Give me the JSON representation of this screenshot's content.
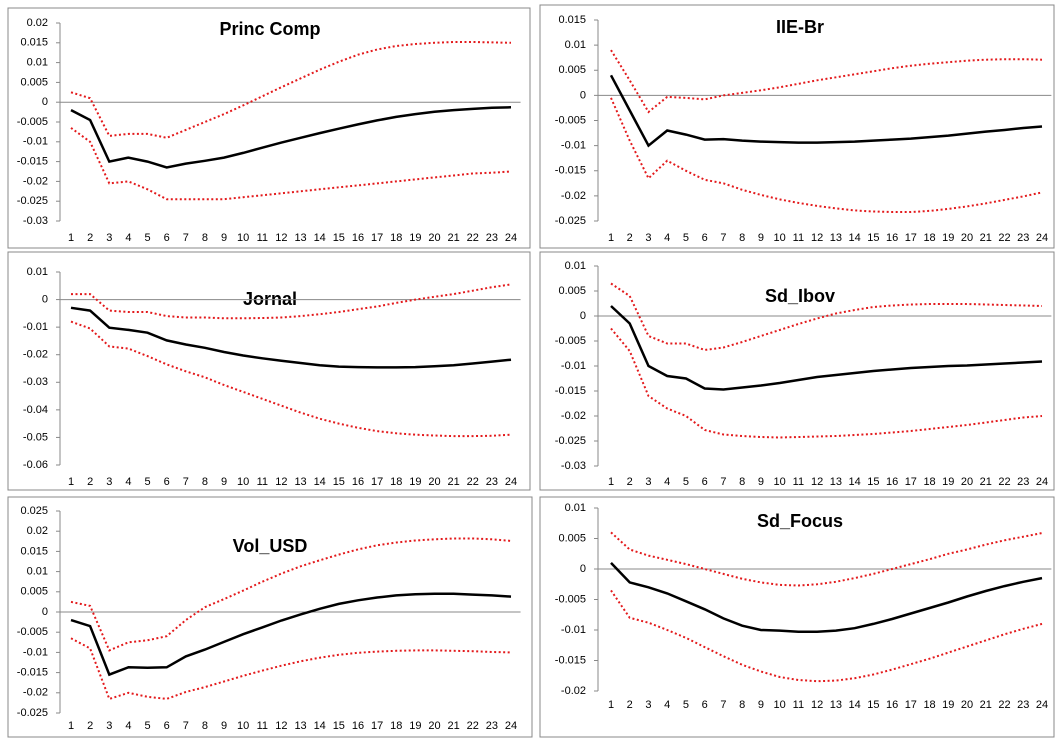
{
  "chart_data": [
    {
      "type": "line",
      "title": "Princ Comp",
      "categories": [
        "1",
        "2",
        "3",
        "4",
        "5",
        "6",
        "7",
        "8",
        "9",
        "10",
        "11",
        "12",
        "13",
        "14",
        "15",
        "16",
        "17",
        "18",
        "19",
        "20",
        "21",
        "22",
        "23",
        "24"
      ],
      "ylim": [
        -0.03,
        0.02
      ],
      "yticks": [
        0.02,
        0.015,
        0.01,
        0.005,
        0,
        -0.005,
        -0.01,
        -0.015,
        -0.02,
        -0.025,
        -0.03
      ],
      "series": [
        {
          "color": "#000000",
          "style": "solid",
          "values": [
            -0.002,
            -0.0045,
            -0.015,
            -0.014,
            -0.015,
            -0.0165,
            -0.0155,
            -0.0148,
            -0.014,
            -0.0128,
            -0.0115,
            -0.0102,
            -0.009,
            -0.0078,
            -0.0067,
            -0.0056,
            -0.0046,
            -0.0037,
            -0.003,
            -0.0024,
            -0.002,
            -0.0017,
            -0.0014,
            -0.0013
          ]
        },
        {
          "color": "#e31a1c",
          "style": "dotted",
          "values": [
            0.0025,
            0.001,
            -0.0085,
            -0.008,
            -0.008,
            -0.009,
            -0.007,
            -0.005,
            -0.003,
            -0.0008,
            0.0015,
            0.0038,
            0.006,
            0.0082,
            0.0102,
            0.012,
            0.0133,
            0.0142,
            0.0147,
            0.015,
            0.0152,
            0.0152,
            0.0151,
            0.015
          ]
        },
        {
          "color": "#e31a1c",
          "style": "dotted",
          "values": [
            -0.0065,
            -0.01,
            -0.0205,
            -0.02,
            -0.022,
            -0.0245,
            -0.0245,
            -0.0245,
            -0.0245,
            -0.024,
            -0.0235,
            -0.023,
            -0.0225,
            -0.022,
            -0.0215,
            -0.021,
            -0.0205,
            -0.02,
            -0.0195,
            -0.019,
            -0.0185,
            -0.018,
            -0.0178,
            -0.0175
          ]
        }
      ]
    },
    {
      "type": "line",
      "title": "IIE-Br",
      "categories": [
        "1",
        "2",
        "3",
        "4",
        "5",
        "6",
        "7",
        "8",
        "9",
        "10",
        "11",
        "12",
        "13",
        "14",
        "15",
        "16",
        "17",
        "18",
        "19",
        "20",
        "21",
        "22",
        "23",
        "24"
      ],
      "ylim": [
        -0.025,
        0.015
      ],
      "yticks": [
        0.015,
        0.01,
        0.005,
        0,
        -0.005,
        -0.01,
        -0.015,
        -0.02,
        -0.025
      ],
      "series": [
        {
          "color": "#000000",
          "style": "solid",
          "values": [
            0.004,
            -0.003,
            -0.01,
            -0.007,
            -0.0078,
            -0.0088,
            -0.0087,
            -0.009,
            -0.0092,
            -0.0093,
            -0.0094,
            -0.0094,
            -0.0093,
            -0.0092,
            -0.009,
            -0.0088,
            -0.0086,
            -0.0083,
            -0.008,
            -0.0076,
            -0.0072,
            -0.0069,
            -0.0065,
            -0.0062
          ]
        },
        {
          "color": "#e31a1c",
          "style": "dotted",
          "values": [
            0.009,
            0.003,
            -0.0033,
            -0.0003,
            -0.0005,
            -0.0008,
            0,
            0.0005,
            0.001,
            0.0016,
            0.0023,
            0.003,
            0.0036,
            0.0042,
            0.0048,
            0.0054,
            0.0059,
            0.0063,
            0.0066,
            0.0069,
            0.0071,
            0.0072,
            0.0072,
            0.0071
          ]
        },
        {
          "color": "#e31a1c",
          "style": "dotted",
          "values": [
            -0.0005,
            -0.009,
            -0.0165,
            -0.013,
            -0.015,
            -0.0168,
            -0.0175,
            -0.0188,
            -0.0198,
            -0.0207,
            -0.0214,
            -0.022,
            -0.0225,
            -0.0229,
            -0.0231,
            -0.0232,
            -0.0232,
            -0.023,
            -0.0226,
            -0.0221,
            -0.0215,
            -0.0208,
            -0.0201,
            -0.0193
          ]
        }
      ]
    },
    {
      "type": "line",
      "title": "Jornal",
      "categories": [
        "1",
        "2",
        "3",
        "4",
        "5",
        "6",
        "7",
        "8",
        "9",
        "10",
        "11",
        "12",
        "13",
        "14",
        "15",
        "16",
        "17",
        "18",
        "19",
        "20",
        "21",
        "22",
        "23",
        "24"
      ],
      "ylim": [
        -0.06,
        0.01
      ],
      "yticks": [
        0.01,
        0,
        -0.01,
        -0.02,
        -0.03,
        -0.04,
        -0.05,
        -0.06
      ],
      "series": [
        {
          "color": "#000000",
          "style": "solid",
          "values": [
            -0.003,
            -0.004,
            -0.0102,
            -0.011,
            -0.012,
            -0.0148,
            -0.0163,
            -0.0175,
            -0.019,
            -0.0203,
            -0.0213,
            -0.0222,
            -0.023,
            -0.0238,
            -0.0243,
            -0.0245,
            -0.0246,
            -0.0246,
            -0.0245,
            -0.0242,
            -0.0238,
            -0.0232,
            -0.0225,
            -0.0218
          ]
        },
        {
          "color": "#e31a1c",
          "style": "dotted",
          "values": [
            0.002,
            0.002,
            -0.004,
            -0.0045,
            -0.0045,
            -0.006,
            -0.0065,
            -0.0065,
            -0.0068,
            -0.0068,
            -0.0067,
            -0.0065,
            -0.006,
            -0.0053,
            -0.0045,
            -0.0035,
            -0.0025,
            -0.0012,
            0,
            0.001,
            0.002,
            0.0032,
            0.0045,
            0.0055
          ]
        },
        {
          "color": "#e31a1c",
          "style": "dotted",
          "values": [
            -0.008,
            -0.0105,
            -0.017,
            -0.0178,
            -0.0205,
            -0.0235,
            -0.026,
            -0.0282,
            -0.031,
            -0.0335,
            -0.036,
            -0.0385,
            -0.041,
            -0.0432,
            -0.045,
            -0.0465,
            -0.0477,
            -0.0485,
            -0.049,
            -0.0493,
            -0.0495,
            -0.0495,
            -0.0494,
            -0.049
          ]
        }
      ]
    },
    {
      "type": "line",
      "title": "Sd_Ibov",
      "categories": [
        "1",
        "2",
        "3",
        "4",
        "5",
        "6",
        "7",
        "8",
        "9",
        "10",
        "11",
        "12",
        "13",
        "14",
        "15",
        "16",
        "17",
        "18",
        "19",
        "20",
        "21",
        "22",
        "23",
        "24"
      ],
      "ylim": [
        -0.03,
        0.01
      ],
      "yticks": [
        0.01,
        0.005,
        0,
        -0.005,
        -0.01,
        -0.015,
        -0.02,
        -0.025,
        -0.03
      ],
      "series": [
        {
          "color": "#000000",
          "style": "solid",
          "values": [
            0.002,
            -0.0015,
            -0.01,
            -0.012,
            -0.0125,
            -0.0145,
            -0.0147,
            -0.0143,
            -0.0139,
            -0.0134,
            -0.0128,
            -0.0122,
            -0.0118,
            -0.0114,
            -0.011,
            -0.0107,
            -0.0104,
            -0.0102,
            -0.01,
            -0.0099,
            -0.0097,
            -0.0095,
            -0.0093,
            -0.0091
          ]
        },
        {
          "color": "#e31a1c",
          "style": "dotted",
          "values": [
            0.0065,
            0.004,
            -0.004,
            -0.0055,
            -0.0055,
            -0.0068,
            -0.0063,
            -0.0052,
            -0.004,
            -0.0028,
            -0.0016,
            -0.0005,
            0.0005,
            0.0012,
            0.0018,
            0.0021,
            0.0023,
            0.0024,
            0.0024,
            0.0024,
            0.0023,
            0.0022,
            0.0021,
            0.002
          ]
        },
        {
          "color": "#e31a1c",
          "style": "dotted",
          "values": [
            -0.0025,
            -0.007,
            -0.016,
            -0.0185,
            -0.02,
            -0.0228,
            -0.0237,
            -0.024,
            -0.0242,
            -0.0243,
            -0.0242,
            -0.0241,
            -0.024,
            -0.0238,
            -0.0236,
            -0.0233,
            -0.023,
            -0.0226,
            -0.0222,
            -0.0218,
            -0.0213,
            -0.0208,
            -0.0203,
            -0.02
          ]
        }
      ]
    },
    {
      "type": "line",
      "title": "Vol_USD",
      "categories": [
        "1",
        "2",
        "3",
        "4",
        "5",
        "6",
        "7",
        "8",
        "9",
        "10",
        "11",
        "12",
        "13",
        "14",
        "15",
        "16",
        "17",
        "18",
        "19",
        "20",
        "21",
        "22",
        "23",
        "24"
      ],
      "ylim": [
        -0.025,
        0.025
      ],
      "yticks": [
        0.025,
        0.02,
        0.015,
        0.01,
        0.005,
        0,
        -0.005,
        -0.01,
        -0.015,
        -0.02,
        -0.025
      ],
      "series": [
        {
          "color": "#000000",
          "style": "solid",
          "values": [
            -0.002,
            -0.0035,
            -0.0155,
            -0.0137,
            -0.0138,
            -0.0137,
            -0.011,
            -0.0093,
            -0.0074,
            -0.0055,
            -0.0038,
            -0.0021,
            -0.0006,
            0.0008,
            0.002,
            0.0029,
            0.0036,
            0.0041,
            0.0044,
            0.0045,
            0.0045,
            0.0043,
            0.0041,
            0.0038
          ]
        },
        {
          "color": "#e31a1c",
          "style": "dotted",
          "values": [
            0.0025,
            0.0015,
            -0.0095,
            -0.0075,
            -0.007,
            -0.006,
            -0.002,
            0.0012,
            0.0032,
            0.0053,
            0.0075,
            0.0095,
            0.0113,
            0.0128,
            0.0142,
            0.0155,
            0.0165,
            0.0172,
            0.0177,
            0.018,
            0.0182,
            0.0182,
            0.018,
            0.0176
          ]
        },
        {
          "color": "#e31a1c",
          "style": "dotted",
          "values": [
            -0.0065,
            -0.009,
            -0.0215,
            -0.02,
            -0.021,
            -0.0215,
            -0.0198,
            -0.0186,
            -0.0172,
            -0.0158,
            -0.0145,
            -0.0133,
            -0.0122,
            -0.0113,
            -0.0106,
            -0.0101,
            -0.0098,
            -0.0096,
            -0.0095,
            -0.0095,
            -0.0096,
            -0.0097,
            -0.0099,
            -0.01
          ]
        }
      ]
    },
    {
      "type": "line",
      "title": "Sd_Focus",
      "categories": [
        "1",
        "2",
        "3",
        "4",
        "5",
        "6",
        "7",
        "8",
        "9",
        "10",
        "11",
        "12",
        "13",
        "14",
        "15",
        "16",
        "17",
        "18",
        "19",
        "20",
        "21",
        "22",
        "23",
        "24"
      ],
      "ylim": [
        -0.02,
        0.01
      ],
      "yticks": [
        0.01,
        0.005,
        0,
        -0.005,
        -0.01,
        -0.015,
        -0.02
      ],
      "series": [
        {
          "color": "#000000",
          "style": "solid",
          "values": [
            0.001,
            -0.0022,
            -0.003,
            -0.004,
            -0.0053,
            -0.0066,
            -0.0081,
            -0.0093,
            -0.01,
            -0.0101,
            -0.0103,
            -0.0103,
            -0.0101,
            -0.0097,
            -0.009,
            -0.0082,
            -0.0073,
            -0.0064,
            -0.0055,
            -0.0045,
            -0.0036,
            -0.0028,
            -0.0021,
            -0.0015
          ]
        },
        {
          "color": "#e31a1c",
          "style": "dotted",
          "values": [
            0.006,
            0.0032,
            0.0022,
            0.0015,
            0.0008,
            0,
            -0.0008,
            -0.0016,
            -0.0022,
            -0.0026,
            -0.0027,
            -0.0025,
            -0.0021,
            -0.0015,
            -0.0008,
            0,
            0.0008,
            0.0016,
            0.0025,
            0.0032,
            0.004,
            0.0047,
            0.0053,
            0.0059
          ]
        },
        {
          "color": "#e31a1c",
          "style": "dotted",
          "values": [
            -0.0035,
            -0.008,
            -0.0088,
            -0.01,
            -0.0113,
            -0.0128,
            -0.0143,
            -0.0157,
            -0.0168,
            -0.0177,
            -0.0182,
            -0.0184,
            -0.0183,
            -0.0179,
            -0.0173,
            -0.0165,
            -0.0156,
            -0.0147,
            -0.0137,
            -0.0127,
            -0.0117,
            -0.0107,
            -0.0098,
            -0.009
          ]
        }
      ]
    }
  ]
}
